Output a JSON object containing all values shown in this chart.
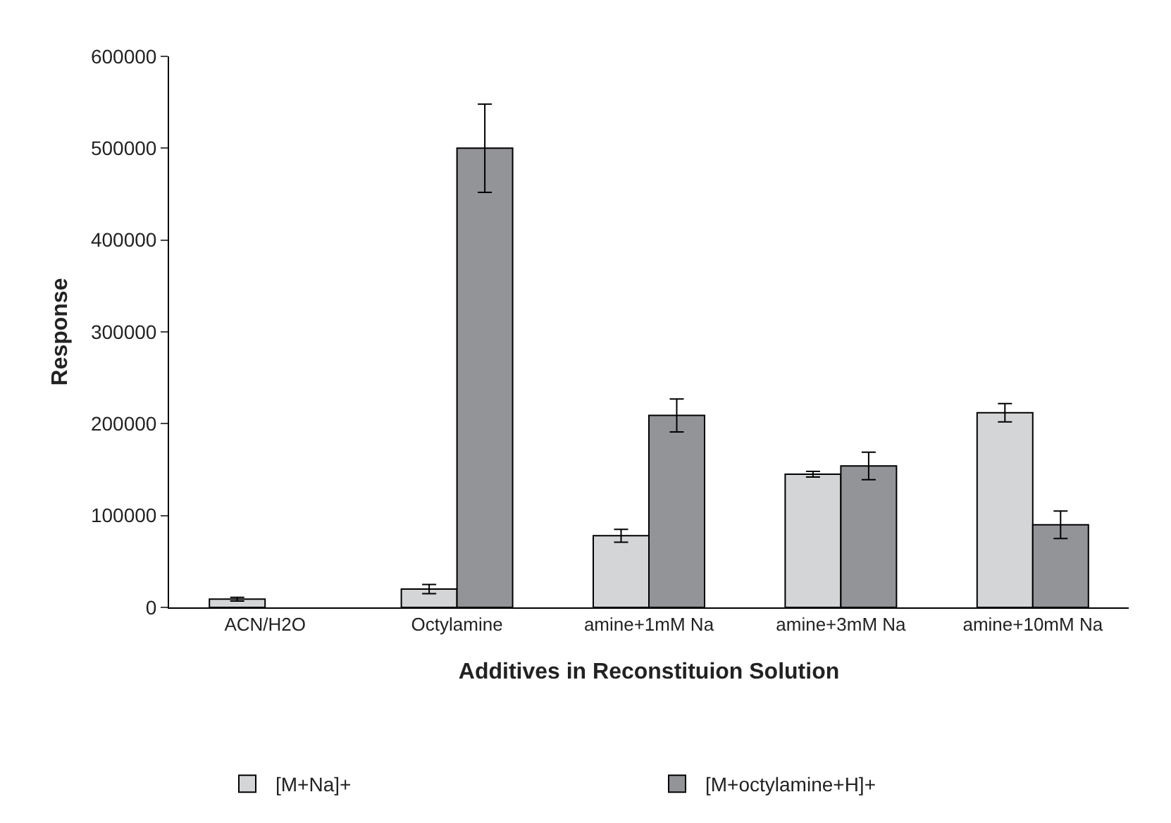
{
  "chart_data": {
    "type": "bar",
    "xlabel": "Additives in Reconstituion Solution",
    "ylabel": "Response",
    "categories": [
      "ACN/H2O",
      "Octylamine",
      "amine+1mM Na",
      "amine+3mM Na",
      "amine+10mM Na"
    ],
    "series": [
      {
        "name": "[M+Na]+",
        "color": "#d4d5d7",
        "values": [
          9000,
          20000,
          78000,
          145000,
          212000
        ],
        "errors": [
          2000,
          5000,
          7000,
          3000,
          10000
        ]
      },
      {
        "name": "[M+octylamine+H]+",
        "color": "#939498",
        "values": [
          null,
          500000,
          209000,
          154000,
          90000
        ],
        "errors": [
          null,
          48000,
          18000,
          15000,
          15000
        ]
      }
    ],
    "ylim": [
      0,
      600000
    ],
    "yticks": [
      0,
      100000,
      200000,
      300000,
      400000,
      500000,
      600000
    ],
    "grid": false,
    "legend": "bottom"
  }
}
